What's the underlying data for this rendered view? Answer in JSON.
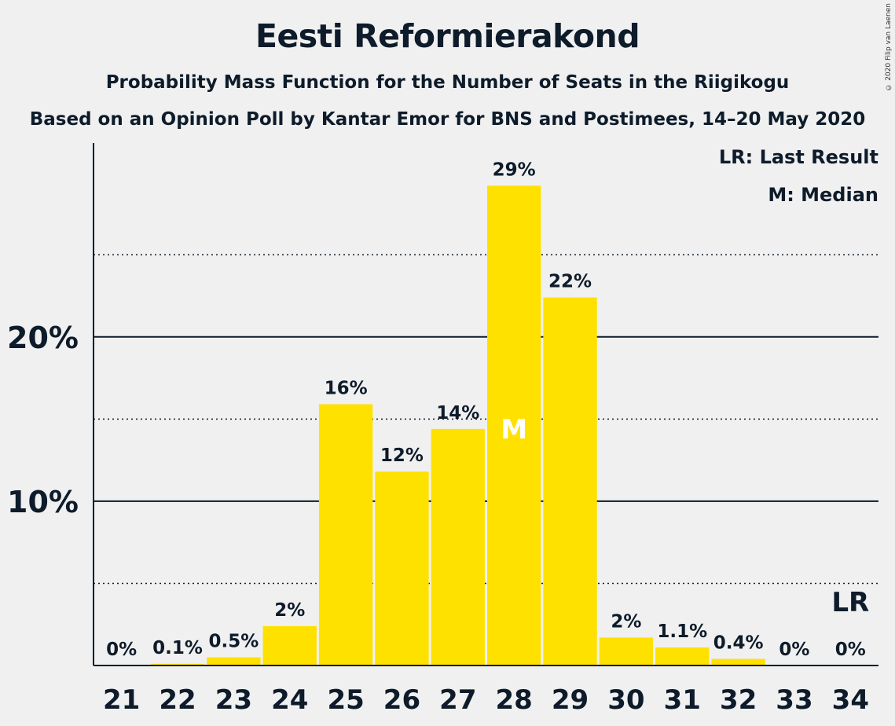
{
  "title": "Eesti Reformierakond",
  "subtitle1": "Probability Mass Function for the Number of Seats in the Riigikogu",
  "subtitle2": "Based on an Opinion Poll by Kantar Emor for BNS and Postimees, 14–20 May 2020",
  "copyright": "© 2020 Filip van Laenen",
  "legend": {
    "last_result": "LR: Last Result",
    "median": "M: Median"
  },
  "colors": {
    "bar": "#ffe100",
    "background": "#f0f0f0",
    "text": "#0d1b2a"
  },
  "chart_data": {
    "type": "bar",
    "title": "Eesti Reformierakond",
    "xlabel": "",
    "ylabel": "",
    "categories": [
      "21",
      "22",
      "23",
      "24",
      "25",
      "26",
      "27",
      "28",
      "29",
      "30",
      "31",
      "32",
      "33",
      "34"
    ],
    "values": [
      0,
      0.1,
      0.5,
      2.4,
      15.9,
      11.8,
      14.4,
      29.2,
      22.4,
      1.7,
      1.1,
      0.4,
      0,
      0
    ],
    "data_labels": [
      "0%",
      "0.1%",
      "0.5%",
      "2%",
      "16%",
      "12%",
      "14%",
      "29%",
      "22%",
      "2%",
      "1.1%",
      "0.4%",
      "0%",
      "0%"
    ],
    "ylim": [
      0,
      31.8
    ],
    "y_ticks": [
      10,
      20
    ],
    "y_tick_labels": [
      "10%",
      "20%"
    ],
    "minor_gridlines": [
      5,
      15,
      25
    ],
    "median_seat": "28",
    "median_marker": "M",
    "last_result_seat": "34",
    "last_result_marker": "LR",
    "legend_position": "top-right"
  }
}
